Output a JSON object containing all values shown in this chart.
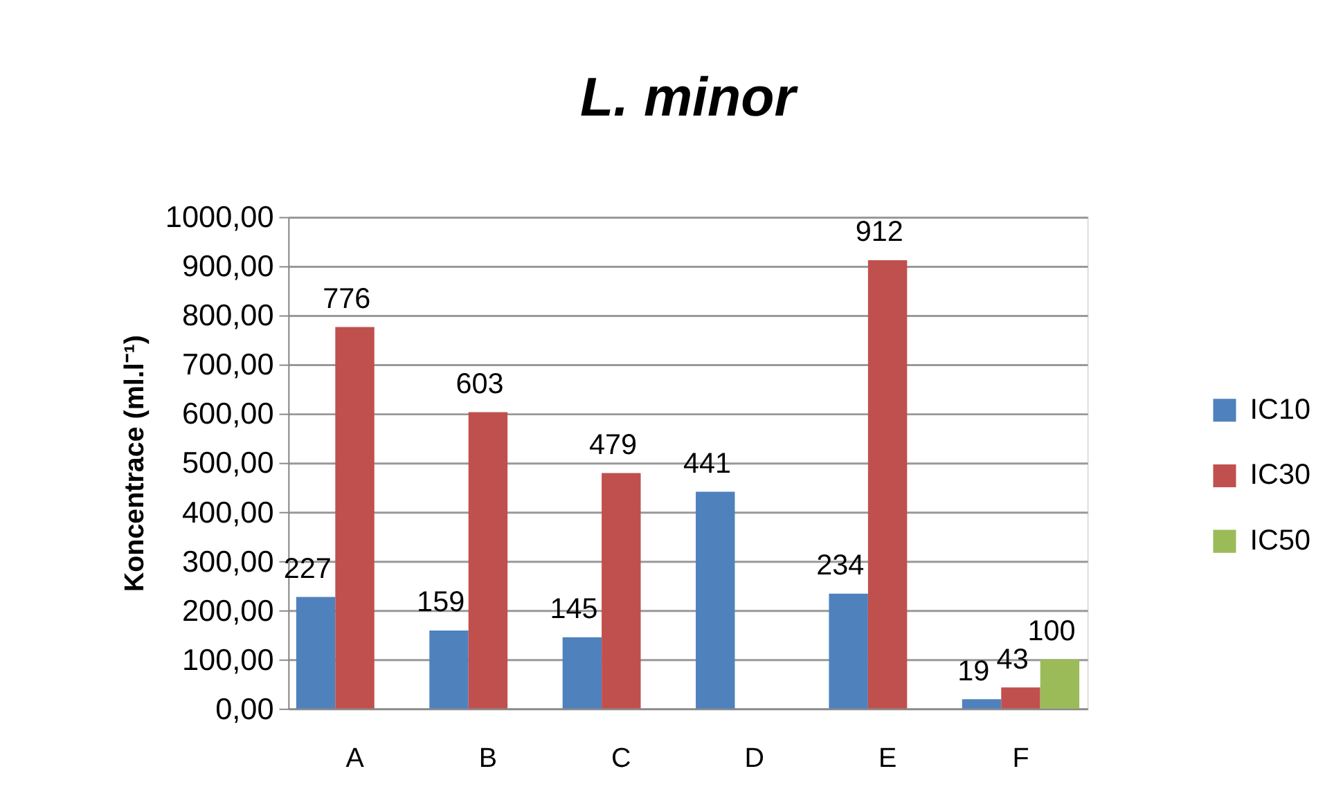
{
  "chart_data": {
    "type": "bar",
    "title": "L. minor",
    "ylabel": "Koncentrace (ml.l⁻¹)",
    "categories": [
      "A",
      "B",
      "C",
      "D",
      "E",
      "F"
    ],
    "series": [
      {
        "name": "IC10",
        "color": "#4f81bd",
        "values": [
          227,
          159,
          145,
          441,
          234,
          19
        ]
      },
      {
        "name": "IC30",
        "color": "#c0504d",
        "values": [
          776,
          603,
          479,
          null,
          912,
          43
        ]
      },
      {
        "name": "IC50",
        "color": "#9bbb59",
        "values": [
          null,
          null,
          null,
          null,
          null,
          100
        ]
      }
    ],
    "ylim": [
      0,
      1000
    ],
    "yticks": [
      {
        "value": 0,
        "label": "0,00"
      },
      {
        "value": 100,
        "label": "100,00"
      },
      {
        "value": 200,
        "label": "200,00"
      },
      {
        "value": 300,
        "label": "300,00"
      },
      {
        "value": 400,
        "label": "400,00"
      },
      {
        "value": 500,
        "label": "500,00"
      },
      {
        "value": 600,
        "label": "600,00"
      },
      {
        "value": 700,
        "label": "700,00"
      },
      {
        "value": 800,
        "label": "800,00"
      },
      {
        "value": 900,
        "label": "900,00"
      },
      {
        "value": 1000,
        "label": "1000,00"
      }
    ],
    "grid": "y",
    "legend": "right",
    "data_labels": true
  }
}
